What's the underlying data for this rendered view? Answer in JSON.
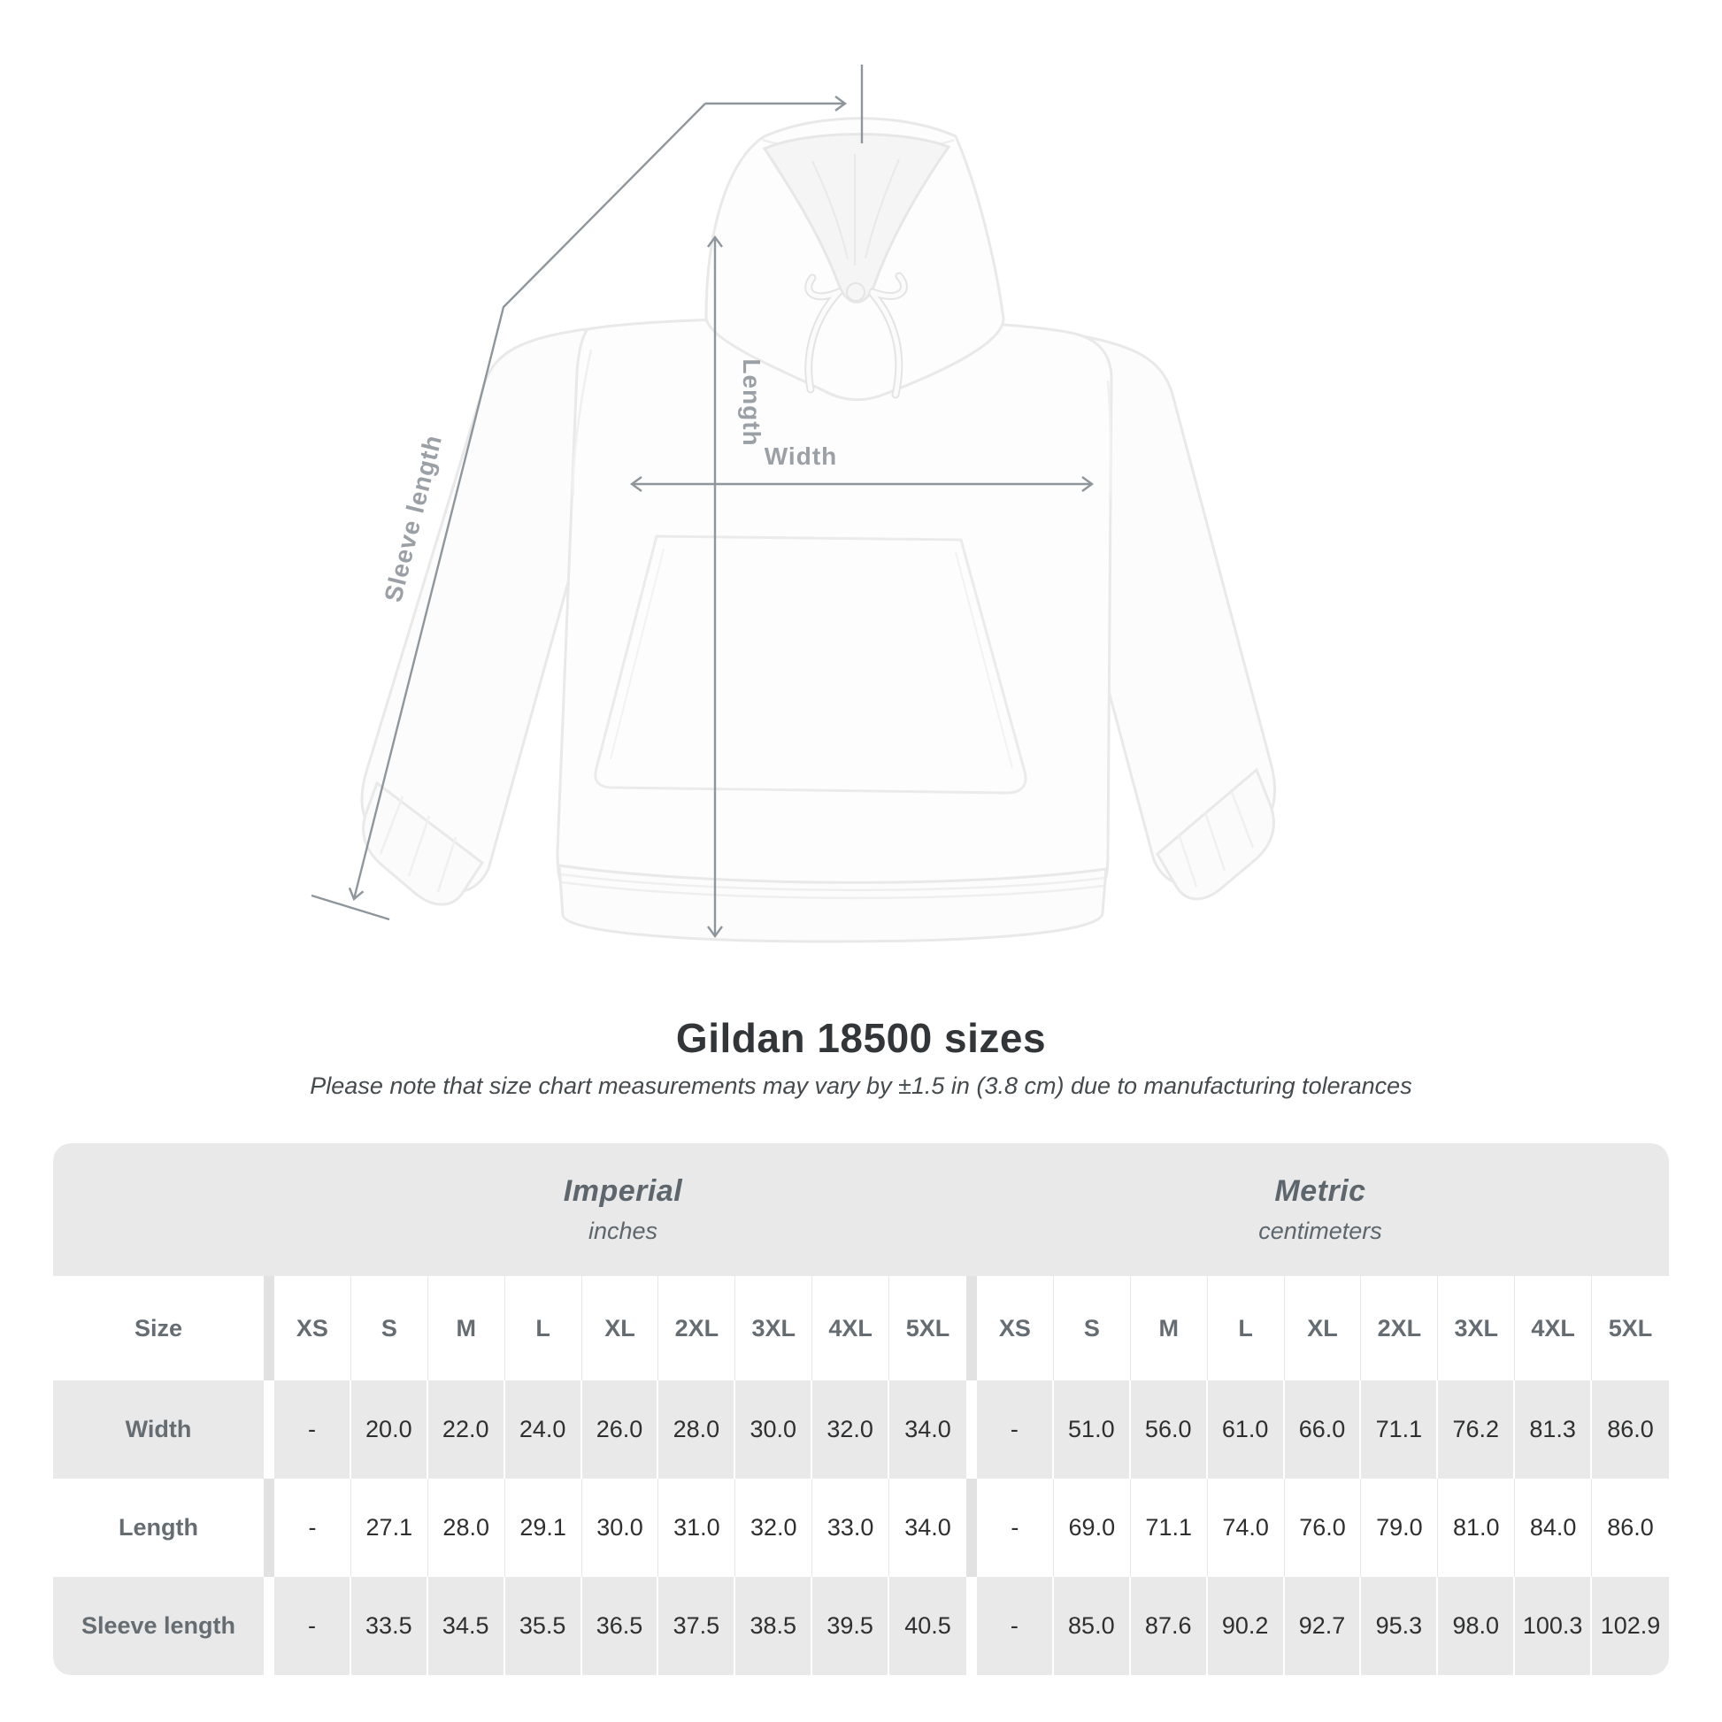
{
  "title": "Gildan 18500 sizes",
  "subtitle": "Please note that size chart measurements may vary by ±1.5 in (3.8 cm) due to manufacturing tolerances",
  "diagram": {
    "length_label": "Length",
    "width_label": "Width",
    "sleeve_label": "Sleeve length"
  },
  "chart_data": {
    "type": "table",
    "title": "Gildan 18500 sizes",
    "note": "Please note that size chart measurements may vary by ±1.5 in (3.8 cm) due to manufacturing tolerances",
    "row_header": "Size",
    "sizes": [
      "XS",
      "S",
      "M",
      "L",
      "XL",
      "2XL",
      "3XL",
      "4XL",
      "5XL"
    ],
    "groups": [
      {
        "label": "Imperial",
        "unit": "inches"
      },
      {
        "label": "Metric",
        "unit": "centimeters"
      }
    ],
    "rows": [
      {
        "label": "Width",
        "imperial": [
          "-",
          "20.0",
          "22.0",
          "24.0",
          "26.0",
          "28.0",
          "30.0",
          "32.0",
          "34.0"
        ],
        "metric": [
          "-",
          "51.0",
          "56.0",
          "61.0",
          "66.0",
          "71.1",
          "76.2",
          "81.3",
          "86.0"
        ]
      },
      {
        "label": "Length",
        "imperial": [
          "-",
          "27.1",
          "28.0",
          "29.1",
          "30.0",
          "31.0",
          "32.0",
          "33.0",
          "34.0"
        ],
        "metric": [
          "-",
          "69.0",
          "71.1",
          "74.0",
          "76.0",
          "79.0",
          "81.0",
          "84.0",
          "86.0"
        ]
      },
      {
        "label": "Sleeve length",
        "imperial": [
          "-",
          "33.5",
          "34.5",
          "35.5",
          "36.5",
          "37.5",
          "38.5",
          "39.5",
          "40.5"
        ],
        "metric": [
          "-",
          "85.0",
          "87.6",
          "90.2",
          "92.7",
          "95.3",
          "98.0",
          "100.3",
          "102.9"
        ]
      }
    ],
    "colors": {
      "band": "#e9e9e9",
      "row_alt": "#e9e9e9",
      "header_text": "#666d72",
      "value_text": "#2e2f30",
      "annotation_line": "#8f969b",
      "annotation_text": "#9aa0a5"
    }
  }
}
